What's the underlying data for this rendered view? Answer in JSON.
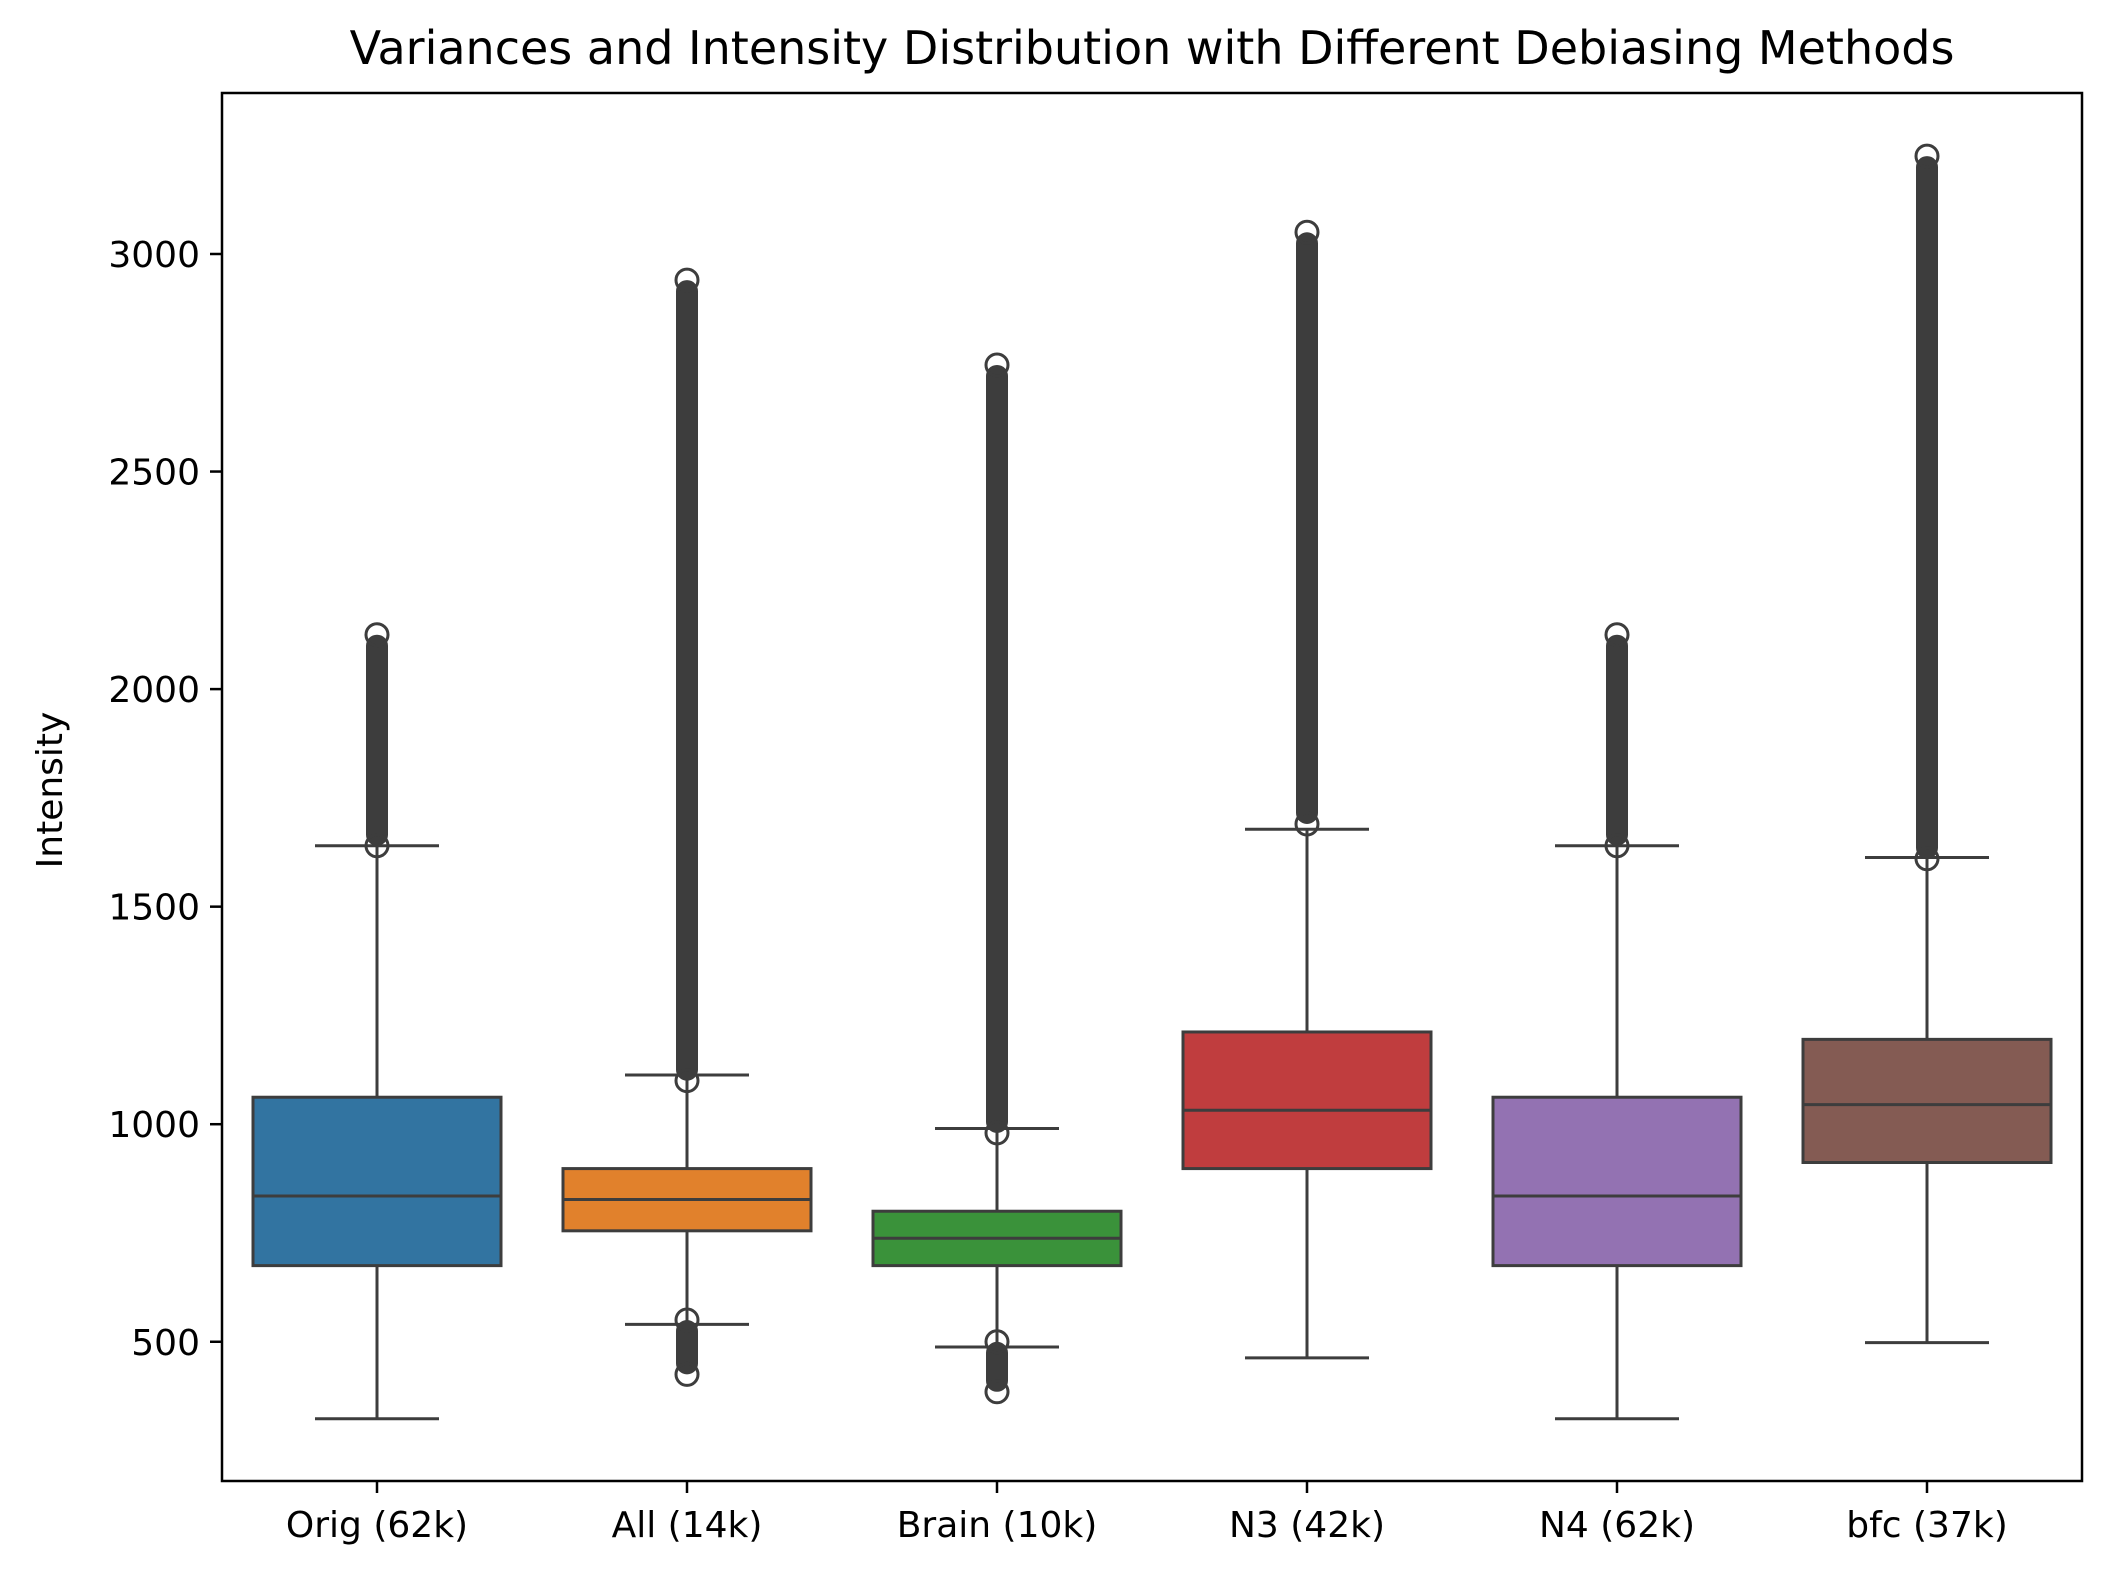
{
  "chart_data": {
    "type": "box",
    "title": "Variances and Intensity Distribution with Different Debiasing Methods",
    "xlabel": "",
    "ylabel": "Intensity",
    "ylim": [
      180,
      3370
    ],
    "yticks": [
      500,
      1000,
      1500,
      2000,
      2500,
      3000
    ],
    "grid": false,
    "categories": [
      "Orig (62k)",
      "All (14k)",
      "Brain (10k)",
      "N3 (42k)",
      "N4 (62k)",
      "bfc (37k)"
    ],
    "colors": [
      "#3274a1",
      "#e1812c",
      "#3a923a",
      "#c03d3e",
      "#9372b2",
      "#845b53"
    ],
    "outlier_color": "#3d3d3d",
    "boxes": [
      {
        "name": "Orig (62k)",
        "q1": 675,
        "median": 835,
        "q3": 1062,
        "whisker_low": 323,
        "whisker_high": 1640,
        "outliers_high": [
          1640,
          2125
        ],
        "outliers_low": null
      },
      {
        "name": "All (14k)",
        "q1": 755,
        "median": 827,
        "q3": 898,
        "whisker_low": 540,
        "whisker_high": 1113,
        "outliers_high": [
          1100,
          2940
        ],
        "outliers_low": [
          425,
          550
        ]
      },
      {
        "name": "Brain (10k)",
        "q1": 675,
        "median": 738,
        "q3": 800,
        "whisker_low": 488,
        "whisker_high": 990,
        "outliers_high": [
          980,
          2745
        ],
        "outliers_low": [
          385,
          500
        ]
      },
      {
        "name": "N3 (42k)",
        "q1": 898,
        "median": 1032,
        "q3": 1212,
        "whisker_low": 463,
        "whisker_high": 1678,
        "outliers_high": [
          1690,
          3050
        ],
        "outliers_low": null
      },
      {
        "name": "N4 (62k)",
        "q1": 675,
        "median": 835,
        "q3": 1062,
        "whisker_low": 323,
        "whisker_high": 1640,
        "outliers_high": [
          1640,
          2125
        ],
        "outliers_low": null
      },
      {
        "name": "bfc (37k)",
        "q1": 912,
        "median": 1045,
        "q3": 1195,
        "whisker_low": 498,
        "whisker_high": 1613,
        "outliers_high": [
          1610,
          3225
        ],
        "outliers_low": null
      }
    ]
  }
}
